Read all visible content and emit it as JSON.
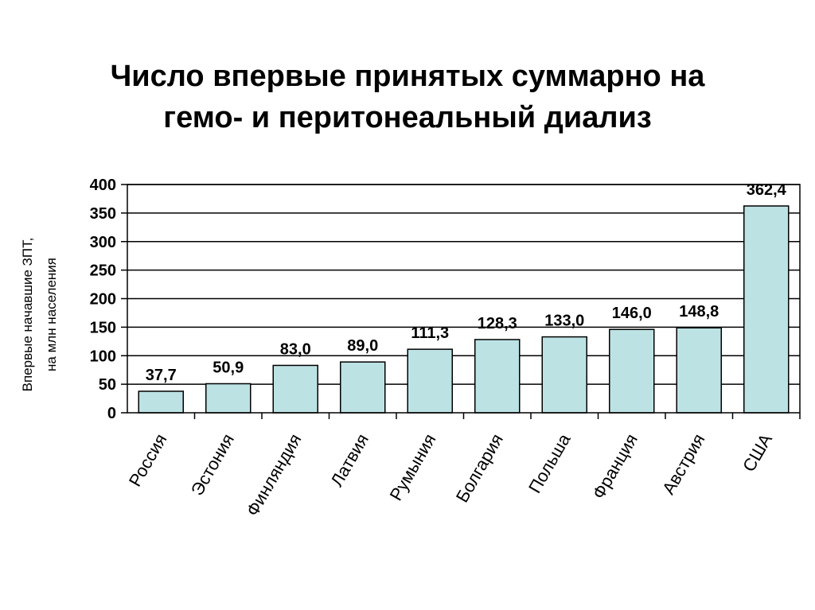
{
  "chart_data": {
    "type": "bar",
    "title": [
      "Число впервые принятых суммарно на",
      "гемо- и перитонеальный диализ"
    ],
    "ylabel": [
      "Впервые начавшие ЗПТ,",
      "на млн населения"
    ],
    "xlabel": "",
    "ylim": [
      0,
      400
    ],
    "yticks": [
      0,
      50,
      100,
      150,
      200,
      250,
      300,
      350,
      400
    ],
    "categories": [
      "Россия",
      "Эстония",
      "Финляндия",
      "Латвия",
      "Румыния",
      "Болгария",
      "Польша",
      "Франция",
      "Австрия",
      "США"
    ],
    "values": [
      37.7,
      50.9,
      83.0,
      89.0,
      111.3,
      128.3,
      133.0,
      146.0,
      148.8,
      362.4
    ],
    "data_labels": [
      "37,7",
      "50,9",
      "83,0",
      "89,0",
      "111,3",
      "128,3",
      "133,0",
      "146,0",
      "148,8",
      "362,4"
    ],
    "grid": true,
    "legend": "none",
    "colors": {
      "bar_fill": "#bde2e4",
      "bar_stroke": "#000000",
      "grid": "#000000"
    }
  }
}
